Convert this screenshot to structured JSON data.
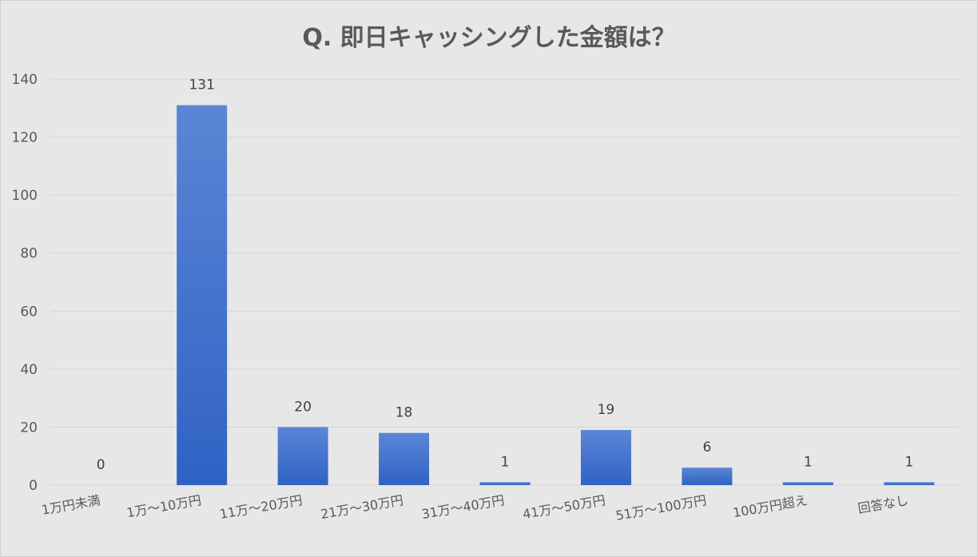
{
  "chart_data": {
    "type": "bar",
    "title": "Q. 即日キャッシングした金額は？",
    "categories": [
      "1万円未満",
      "1万～10万円",
      "11万～20万円",
      "21万～30万円",
      "31万～40万円",
      "41万～50万円",
      "51万～100万円",
      "100万円超え",
      "回答なし"
    ],
    "values": [
      0,
      131,
      20,
      18,
      1,
      19,
      6,
      1,
      1
    ],
    "ylim": [
      0,
      140
    ],
    "yticks": [
      0,
      20,
      40,
      60,
      80,
      100,
      120,
      140
    ],
    "xlabel": "",
    "ylabel": "",
    "grid": true,
    "legend": "none",
    "data_labels": true,
    "colors": {
      "bar_top": "#5b86d6",
      "bar_bottom": "#2f62c4",
      "background": "#e7e7e7",
      "text": "#595959"
    }
  }
}
